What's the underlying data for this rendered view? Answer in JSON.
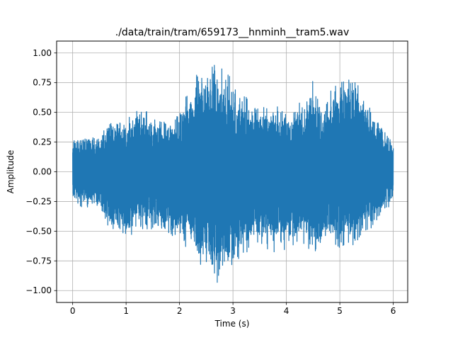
{
  "chart_data": {
    "type": "line",
    "title": "./data/train/tram/659173__hnminh__tram5.wav",
    "xlabel": "Time (s)",
    "ylabel": "Amplitude",
    "xlim": [
      -0.3,
      6.27
    ],
    "ylim": [
      -1.1,
      1.1
    ],
    "x_ticks": [
      0,
      1,
      2,
      3,
      4,
      5,
      6
    ],
    "x_tick_labels": [
      "0",
      "1",
      "2",
      "3",
      "4",
      "5",
      "6"
    ],
    "y_ticks": [
      -1.0,
      -0.75,
      -0.5,
      -0.25,
      0.0,
      0.25,
      0.5,
      0.75,
      1.0
    ],
    "y_tick_labels": [
      "−1.00",
      "−0.75",
      "−0.50",
      "−0.25",
      "0.00",
      "0.25",
      "0.50",
      "0.75",
      "1.00"
    ],
    "grid": true,
    "series": [
      {
        "color": "#1f77b4",
        "duration_s": 6.0,
        "envelope": {
          "t": [
            0.0,
            0.2,
            0.5,
            0.7,
            1.0,
            1.3,
            1.5,
            1.8,
            2.0,
            2.2,
            2.4,
            2.6,
            2.8,
            3.0,
            3.2,
            3.4,
            3.7,
            4.0,
            4.3,
            4.5,
            4.7,
            5.0,
            5.3,
            5.6,
            5.8,
            6.0
          ],
          "upper": [
            0.28,
            0.3,
            0.32,
            0.5,
            0.46,
            0.6,
            0.48,
            0.44,
            0.58,
            0.78,
            0.88,
            0.95,
            0.9,
            0.8,
            0.72,
            0.55,
            0.62,
            0.56,
            0.6,
            0.82,
            0.6,
            0.85,
            0.82,
            0.55,
            0.4,
            0.26
          ],
          "lower": [
            -0.28,
            -0.3,
            -0.32,
            -0.5,
            -0.58,
            -0.48,
            -0.5,
            -0.55,
            -0.58,
            -0.72,
            -0.85,
            -0.95,
            -1.0,
            -0.85,
            -0.8,
            -0.6,
            -0.7,
            -0.7,
            -0.6,
            -0.72,
            -0.62,
            -0.72,
            -0.65,
            -0.52,
            -0.42,
            -0.22
          ]
        }
      }
    ]
  }
}
